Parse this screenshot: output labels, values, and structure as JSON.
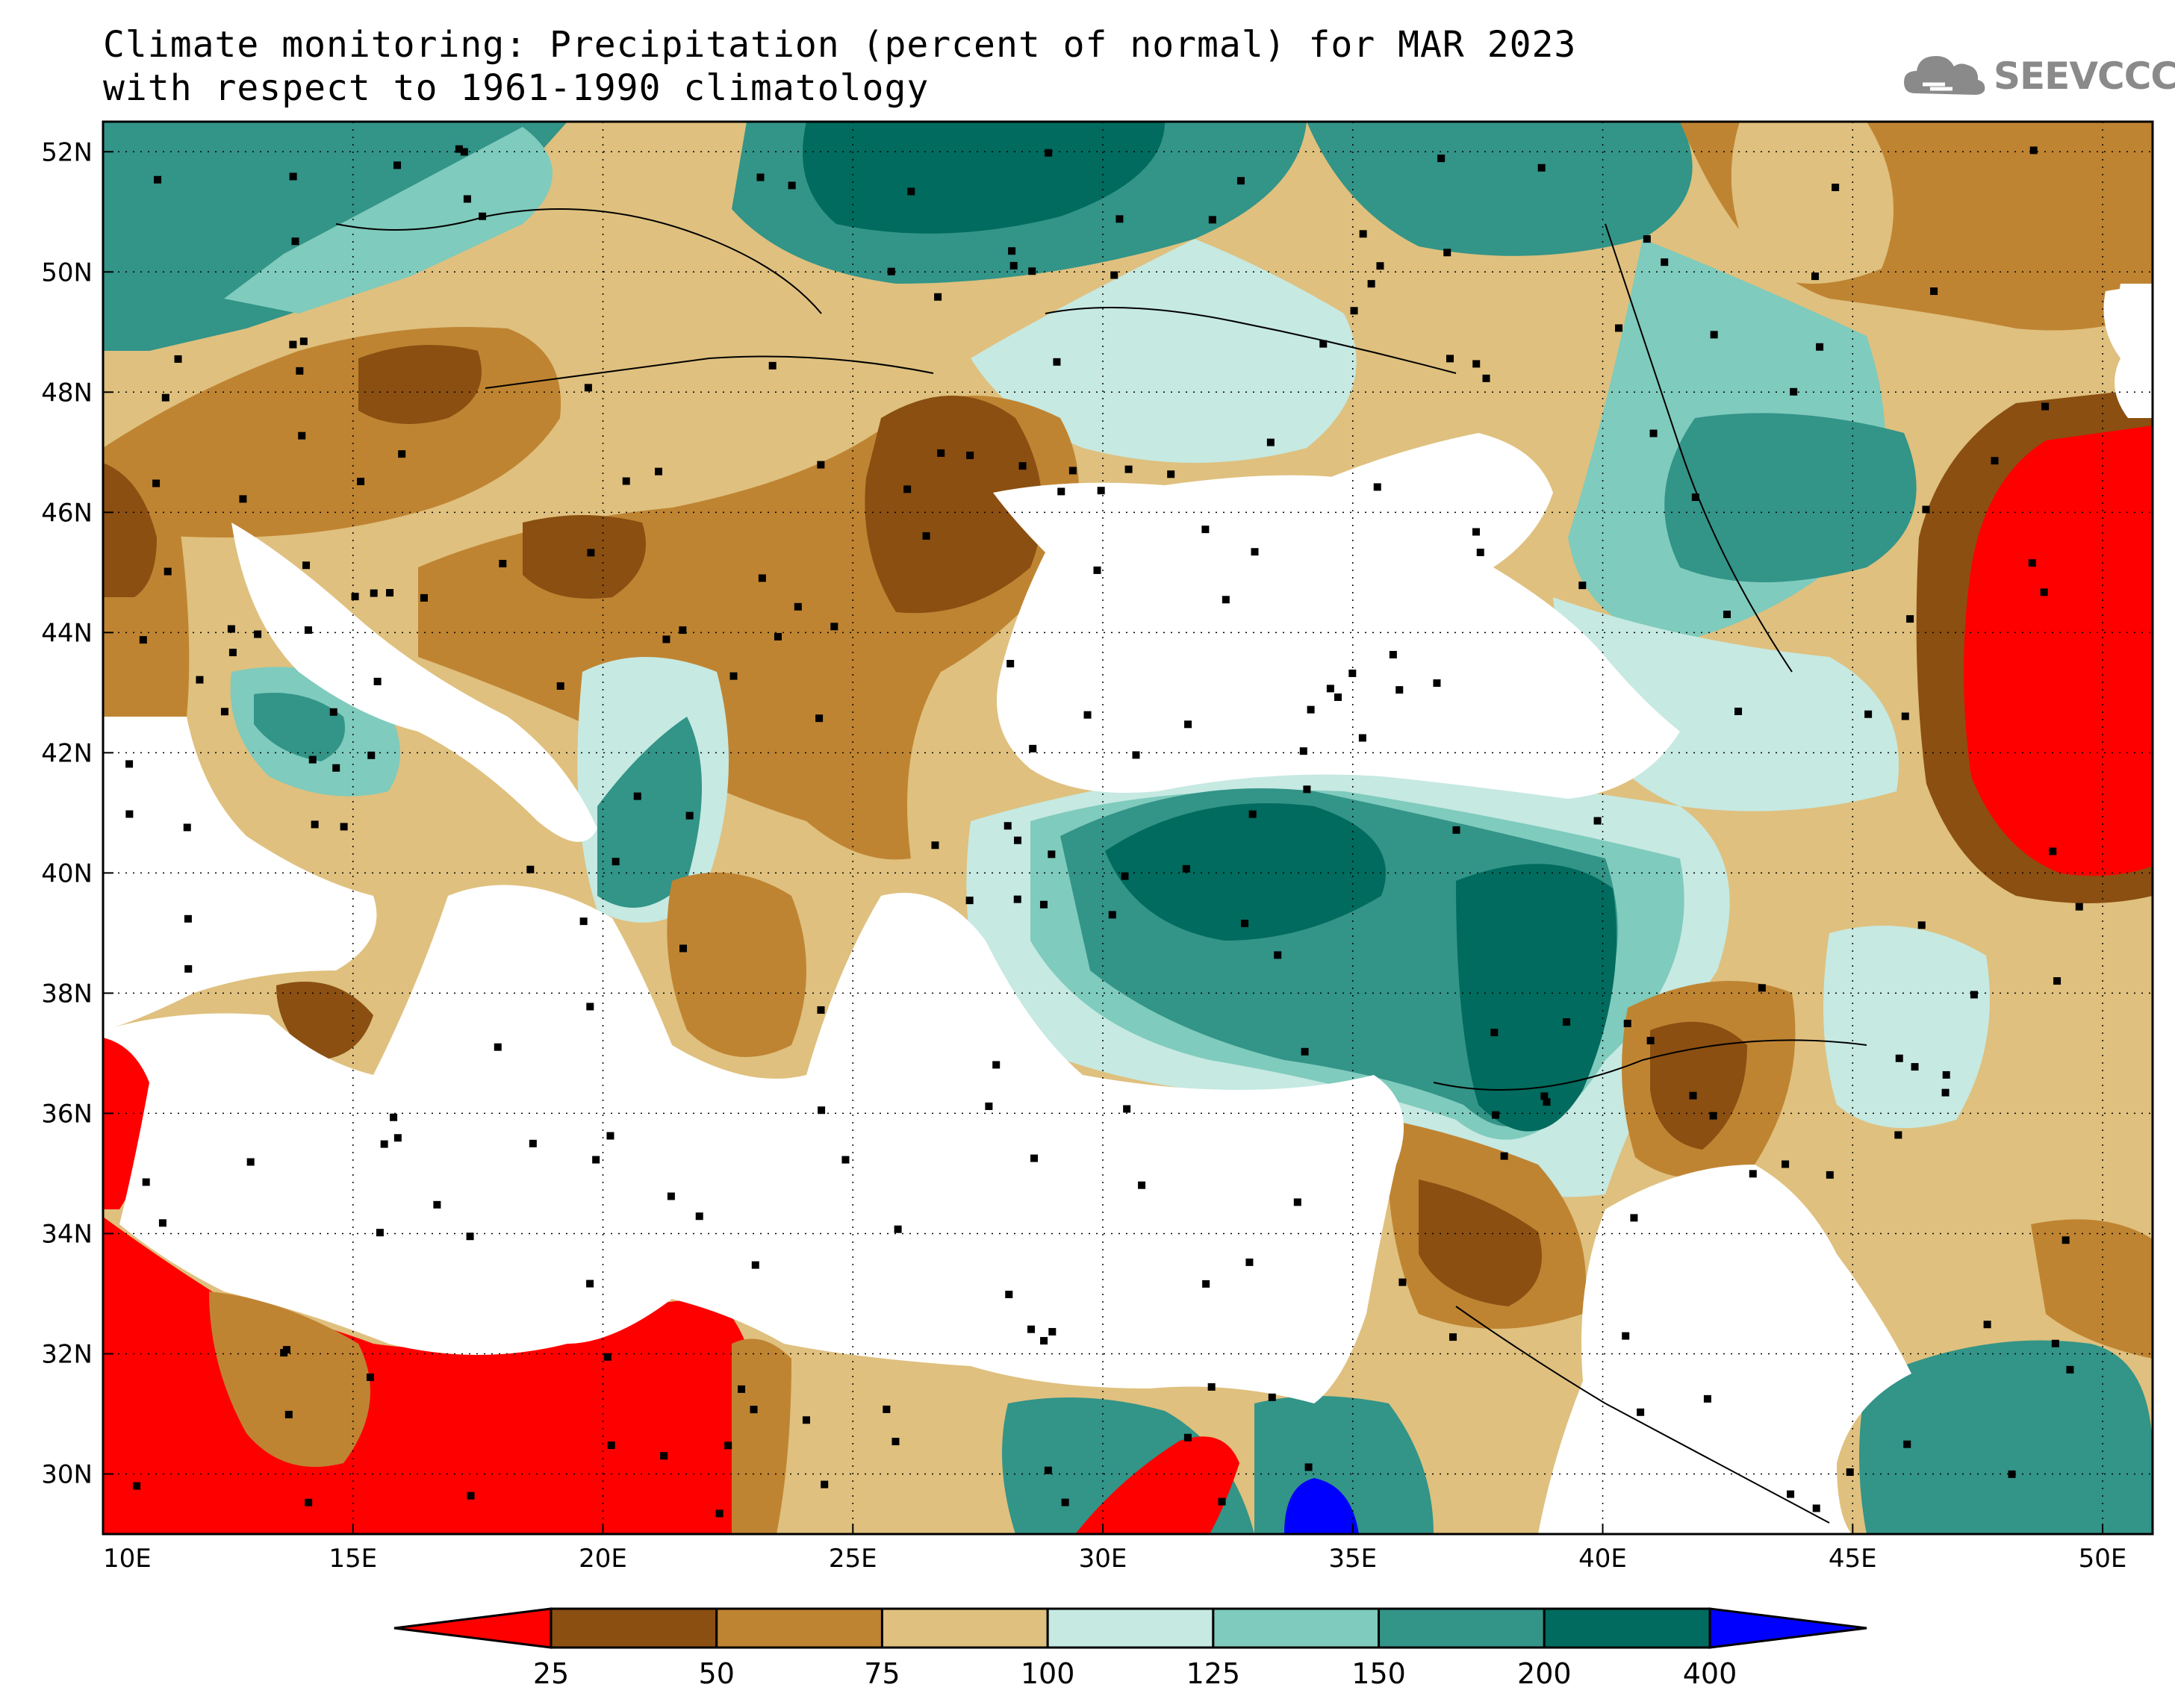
{
  "title": {
    "line1": "Climate monitoring: Precipitation (percent of normal) for MAR 2023",
    "line2": "with respect to 1961-1990 climatology"
  },
  "logo": {
    "text": "SEEVCCC",
    "icon": "cloud-logo-icon"
  },
  "map": {
    "lon_range": [
      10,
      51
    ],
    "lat_range": [
      29,
      52.5
    ],
    "lon_ticks": [
      {
        "value": 10,
        "label": "10E"
      },
      {
        "value": 15,
        "label": "15E"
      },
      {
        "value": 20,
        "label": "20E"
      },
      {
        "value": 25,
        "label": "25E"
      },
      {
        "value": 30,
        "label": "30E"
      },
      {
        "value": 35,
        "label": "35E"
      },
      {
        "value": 40,
        "label": "40E"
      },
      {
        "value": 45,
        "label": "45E"
      },
      {
        "value": 50,
        "label": "50E"
      }
    ],
    "lat_ticks": [
      {
        "value": 52,
        "label": "52N"
      },
      {
        "value": 50,
        "label": "50N"
      },
      {
        "value": 48,
        "label": "48N"
      },
      {
        "value": 46,
        "label": "46N"
      },
      {
        "value": 44,
        "label": "44N"
      },
      {
        "value": 42,
        "label": "42N"
      },
      {
        "value": 40,
        "label": "40N"
      },
      {
        "value": 38,
        "label": "38N"
      },
      {
        "value": 36,
        "label": "36N"
      },
      {
        "value": 34,
        "label": "34N"
      },
      {
        "value": 32,
        "label": "32N"
      },
      {
        "value": 30,
        "label": "30N"
      }
    ],
    "grid": "dotted",
    "colors": {
      "c0": "#ff0000",
      "c1": "#8b4f12",
      "c2": "#bf8432",
      "c3": "#dfc07e",
      "c4": "#c6e9e2",
      "c5": "#7fcbbd",
      "c6": "#339488",
      "c7": "#006b5e",
      "c8": "#0000ff"
    }
  },
  "colorbar": {
    "labels": [
      "25",
      "50",
      "75",
      "100",
      "125",
      "150",
      "200",
      "400"
    ],
    "colors": [
      "#ff0000",
      "#8b4f12",
      "#bf8432",
      "#dfc07e",
      "#c6e9e2",
      "#7fcbbd",
      "#339488",
      "#006b5e",
      "#0000ff"
    ]
  }
}
